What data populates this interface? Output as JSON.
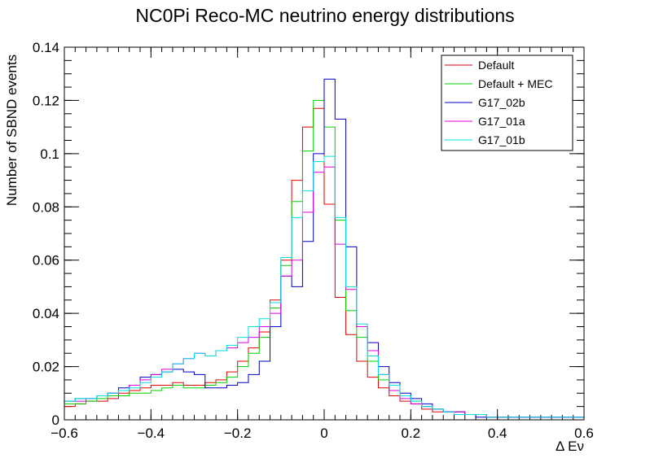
{
  "chart_data": {
    "type": "line",
    "title": "NC0Pi Reco-MC neutrino energy distributions",
    "xlabel": "Δ Eν",
    "ylabel": "Number of SBND events",
    "xlim": [
      -0.6,
      0.6
    ],
    "ylim": [
      0,
      0.14
    ],
    "x_ticks": [
      "−0.6",
      "−0.4",
      "−0.2",
      "0",
      "0.2",
      "0.4",
      "0.6"
    ],
    "x_tick_values": [
      -0.6,
      -0.4,
      -0.2,
      0,
      0.2,
      0.4,
      0.6
    ],
    "y_ticks": [
      "0",
      "0.02",
      "0.04",
      "0.06",
      "0.08",
      "0.1",
      "0.12",
      "0.14"
    ],
    "y_tick_values": [
      0,
      0.02,
      0.04,
      0.06,
      0.08,
      0.1,
      0.12,
      0.14
    ],
    "legend_position": "top-right",
    "bin_edges": [
      -0.6,
      -0.575,
      -0.55,
      -0.525,
      -0.5,
      -0.475,
      -0.45,
      -0.425,
      -0.4,
      -0.375,
      -0.35,
      -0.325,
      -0.3,
      -0.275,
      -0.25,
      -0.225,
      -0.2,
      -0.175,
      -0.15,
      -0.125,
      -0.1,
      -0.075,
      -0.05,
      -0.025,
      0,
      0.025,
      0.05,
      0.075,
      0.1,
      0.125,
      0.15,
      0.175,
      0.2,
      0.225,
      0.25,
      0.275,
      0.3,
      0.325,
      0.35,
      0.375,
      0.4,
      0.425,
      0.45,
      0.475,
      0.5,
      0.525,
      0.55,
      0.575,
      0.6
    ],
    "series": [
      {
        "name": "Default",
        "color": "#e00000",
        "values": [
          0.005,
          0.006,
          0.007,
          0.007,
          0.008,
          0.01,
          0.011,
          0.012,
          0.013,
          0.013,
          0.014,
          0.013,
          0.013,
          0.014,
          0.015,
          0.018,
          0.022,
          0.027,
          0.033,
          0.045,
          0.06,
          0.09,
          0.11,
          0.117,
          0.081,
          0.046,
          0.032,
          0.022,
          0.016,
          0.012,
          0.009,
          0.007,
          0.006,
          0.004,
          0.003,
          0.003,
          0.002,
          0.002,
          0.002,
          0.001,
          0.001,
          0.001,
          0.001,
          0.001,
          0.001,
          0.001,
          0.001,
          0.001
        ]
      },
      {
        "name": "Default + MEC",
        "color": "#00d000",
        "values": [
          0.006,
          0.006,
          0.007,
          0.008,
          0.009,
          0.009,
          0.01,
          0.01,
          0.011,
          0.012,
          0.013,
          0.012,
          0.012,
          0.013,
          0.014,
          0.016,
          0.02,
          0.025,
          0.031,
          0.042,
          0.058,
          0.082,
          0.101,
          0.12,
          0.11,
          0.075,
          0.041,
          0.031,
          0.022,
          0.015,
          0.011,
          0.009,
          0.007,
          0.005,
          0.004,
          0.003,
          0.003,
          0.002,
          0.002,
          0.001,
          0.001,
          0.001,
          0.001,
          0.001,
          0.001,
          0.001,
          0.001,
          0.001
        ]
      },
      {
        "name": "G17_02b",
        "color": "#0000c0",
        "values": [
          0.007,
          0.008,
          0.008,
          0.009,
          0.01,
          0.012,
          0.013,
          0.016,
          0.017,
          0.018,
          0.019,
          0.018,
          0.017,
          0.012,
          0.012,
          0.013,
          0.014,
          0.017,
          0.022,
          0.035,
          0.054,
          0.05,
          0.067,
          0.1,
          0.128,
          0.113,
          0.065,
          0.035,
          0.029,
          0.02,
          0.014,
          0.01,
          0.008,
          0.006,
          0.004,
          0.003,
          0.003,
          0.002,
          0.001,
          0.001,
          0.001,
          0.001,
          0.001,
          0.001,
          0.001,
          0.001,
          0.001,
          0.001
        ]
      },
      {
        "name": "G17_01a",
        "color": "#e000e0",
        "values": [
          0.007,
          0.007,
          0.008,
          0.009,
          0.01,
          0.011,
          0.013,
          0.015,
          0.017,
          0.019,
          0.021,
          0.023,
          0.025,
          0.024,
          0.026,
          0.027,
          0.029,
          0.031,
          0.035,
          0.04,
          0.054,
          0.06,
          0.078,
          0.093,
          0.095,
          0.066,
          0.049,
          0.035,
          0.026,
          0.017,
          0.011,
          0.008,
          0.006,
          0.005,
          0.004,
          0.003,
          0.003,
          0.002,
          0.002,
          0.001,
          0.001,
          0.001,
          0.001,
          0.001,
          0.001,
          0.001,
          0.001,
          0.001
        ]
      },
      {
        "name": "G17_01b",
        "color": "#00e0e0",
        "values": [
          0.007,
          0.008,
          0.008,
          0.009,
          0.01,
          0.011,
          0.012,
          0.014,
          0.016,
          0.018,
          0.021,
          0.023,
          0.025,
          0.024,
          0.026,
          0.028,
          0.031,
          0.035,
          0.038,
          0.044,
          0.061,
          0.076,
          0.086,
          0.097,
          0.099,
          0.076,
          0.05,
          0.036,
          0.024,
          0.017,
          0.013,
          0.009,
          0.007,
          0.005,
          0.004,
          0.003,
          0.002,
          0.002,
          0.002,
          0.001,
          0.001,
          0.001,
          0.001,
          0.001,
          0.001,
          0.001,
          0.001,
          0.001
        ]
      }
    ]
  }
}
